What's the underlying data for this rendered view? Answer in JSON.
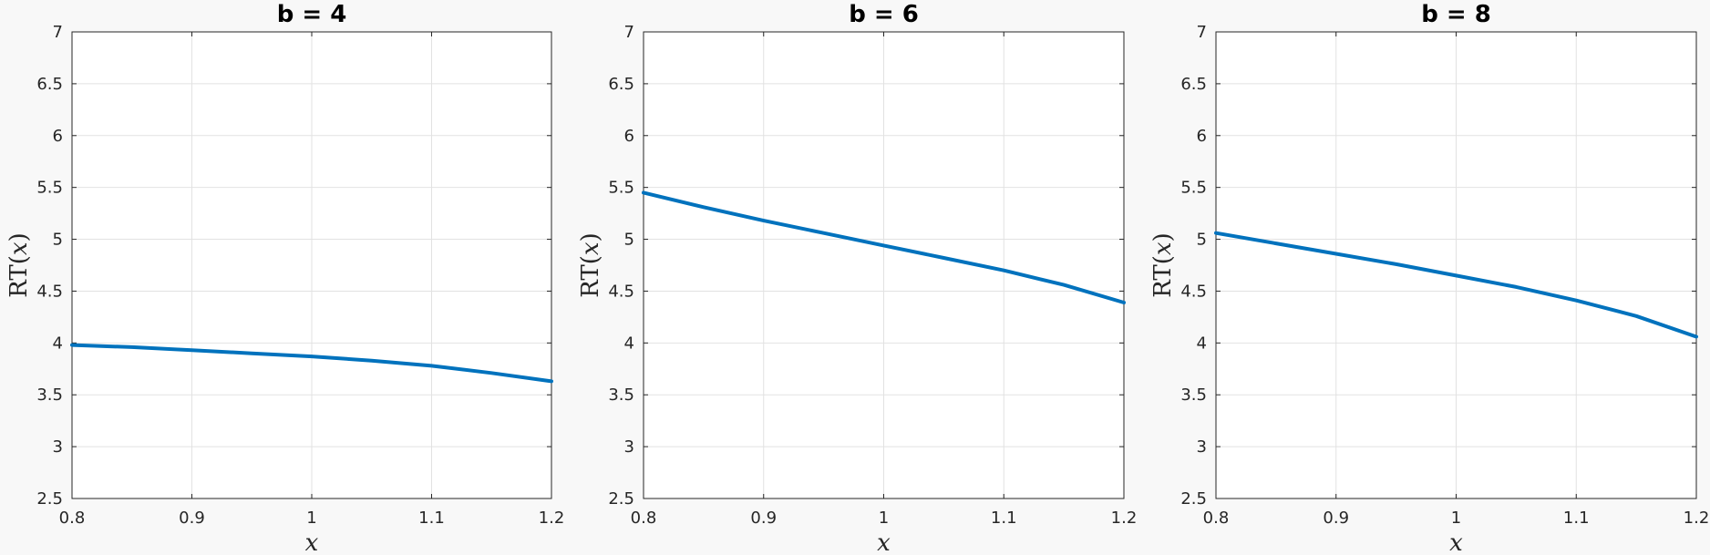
{
  "chart_data": [
    {
      "type": "line",
      "title": "b = 4",
      "xlabel": "x",
      "ylabel": "RT(x)",
      "xlim": [
        0.8,
        1.2
      ],
      "ylim": [
        2.5,
        7
      ],
      "x_ticks": [
        "0.8",
        "0.9",
        "1",
        "1.1",
        "1.2"
      ],
      "y_ticks": [
        "2.5",
        "3",
        "3.5",
        "4",
        "4.5",
        "5",
        "5.5",
        "6",
        "6.5",
        "7"
      ],
      "grid": true,
      "series": [
        {
          "color": "#0072BD",
          "x": [
            0.8,
            0.85,
            0.9,
            0.95,
            1.0,
            1.05,
            1.1,
            1.15,
            1.2
          ],
          "y": [
            3.98,
            3.96,
            3.93,
            3.9,
            3.87,
            3.83,
            3.78,
            3.71,
            3.63
          ]
        }
      ]
    },
    {
      "type": "line",
      "title": "b = 6",
      "xlabel": "x",
      "ylabel": "RT(x)",
      "xlim": [
        0.8,
        1.2
      ],
      "ylim": [
        2.5,
        7
      ],
      "x_ticks": [
        "0.8",
        "0.9",
        "1",
        "1.1",
        "1.2"
      ],
      "y_ticks": [
        "2.5",
        "3",
        "3.5",
        "4",
        "4.5",
        "5",
        "5.5",
        "6",
        "6.5",
        "7"
      ],
      "grid": true,
      "series": [
        {
          "color": "#0072BD",
          "x": [
            0.8,
            0.85,
            0.9,
            0.95,
            1.0,
            1.05,
            1.1,
            1.15,
            1.2
          ],
          "y": [
            5.45,
            5.31,
            5.18,
            5.06,
            4.94,
            4.82,
            4.7,
            4.56,
            4.39
          ]
        }
      ]
    },
    {
      "type": "line",
      "title": "b = 8",
      "xlabel": "x",
      "ylabel": "RT(x)",
      "xlim": [
        0.8,
        1.2
      ],
      "ylim": [
        2.5,
        7
      ],
      "x_ticks": [
        "0.8",
        "0.9",
        "1",
        "1.1",
        "1.2"
      ],
      "y_ticks": [
        "2.5",
        "3",
        "3.5",
        "4",
        "4.5",
        "5",
        "5.5",
        "6",
        "6.5",
        "7"
      ],
      "grid": true,
      "series": [
        {
          "color": "#0072BD",
          "x": [
            0.8,
            0.85,
            0.9,
            0.95,
            1.0,
            1.05,
            1.1,
            1.15,
            1.2
          ],
          "y": [
            5.06,
            4.96,
            4.86,
            4.76,
            4.65,
            4.54,
            4.41,
            4.26,
            4.06
          ]
        }
      ]
    }
  ]
}
